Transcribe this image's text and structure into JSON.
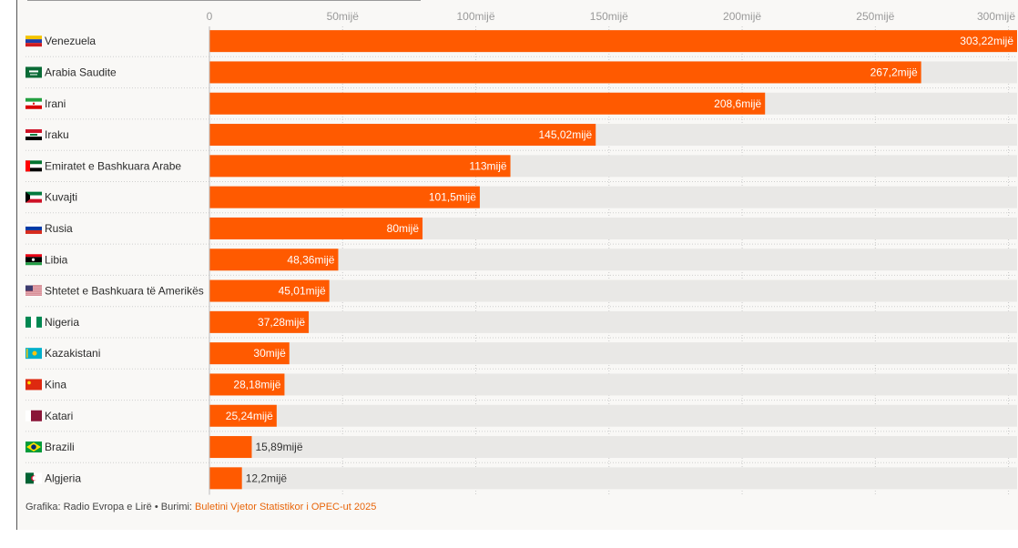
{
  "chart_data": {
    "type": "bar",
    "orientation": "horizontal",
    "unit_suffix": "mijë",
    "xlim": [
      0,
      303.22
    ],
    "ticks": [
      {
        "v": 0,
        "label": "0"
      },
      {
        "v": 50,
        "label": "50mijë"
      },
      {
        "v": 100,
        "label": "100mijë"
      },
      {
        "v": 150,
        "label": "150mijë"
      },
      {
        "v": 200,
        "label": "200mijë"
      },
      {
        "v": 250,
        "label": "250mijë"
      },
      {
        "v": 300,
        "label": "300mijë"
      }
    ],
    "colors": {
      "bar": "#ff5a00",
      "track": "#e9e8e6",
      "grid": "#c9c9c9"
    },
    "rows": [
      {
        "country": "Venezuela",
        "value": 303.22,
        "label": "303,22mijë",
        "flag": "venezuela-flag"
      },
      {
        "country": "Arabia Saudite",
        "value": 267.2,
        "label": "267,2mijë",
        "flag": "saudi-flag"
      },
      {
        "country": "Irani",
        "value": 208.6,
        "label": "208,6mijë",
        "flag": "iran-flag"
      },
      {
        "country": "Iraku",
        "value": 145.02,
        "label": "145,02mijë",
        "flag": "iraq-flag"
      },
      {
        "country": "Emiratet e Bashkuara Arabe",
        "value": 113,
        "label": "113mijë",
        "flag": "uae-flag"
      },
      {
        "country": "Kuvajti",
        "value": 101.5,
        "label": "101,5mijë",
        "flag": "kuwait-flag"
      },
      {
        "country": "Rusia",
        "value": 80,
        "label": "80mijë",
        "flag": "russia-flag"
      },
      {
        "country": "Libia",
        "value": 48.36,
        "label": "48,36mijë",
        "flag": "libya-flag"
      },
      {
        "country": "Shtetet e Bashkuara të Amerikës",
        "value": 45.01,
        "label": "45,01mijë",
        "flag": "usa-flag"
      },
      {
        "country": "Nigeria",
        "value": 37.28,
        "label": "37,28mijë",
        "flag": "nigeria-flag"
      },
      {
        "country": "Kazakistani",
        "value": 30,
        "label": "30mijë",
        "flag": "kazakhstan-flag"
      },
      {
        "country": "Kina",
        "value": 28.18,
        "label": "28,18mijë",
        "flag": "china-flag"
      },
      {
        "country": "Katari",
        "value": 25.24,
        "label": "25,24mijë",
        "flag": "qatar-flag"
      },
      {
        "country": "Brazili",
        "value": 15.89,
        "label": "15,89mijë",
        "flag": "brazil-flag"
      },
      {
        "country": "Algjeria",
        "value": 12.2,
        "label": "12,2mijë",
        "flag": "algeria-flag"
      }
    ]
  },
  "footer": {
    "credit": "Grafika: Radio Evropa e Lirë • Burimi: ",
    "source": "Buletini Vjetor Statistikor i OPEC-ut 2025"
  }
}
